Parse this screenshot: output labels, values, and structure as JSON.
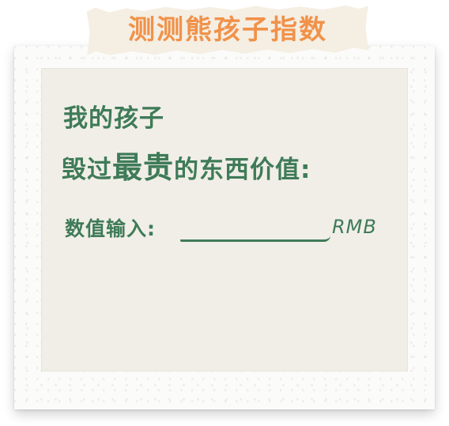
{
  "title": "测测熊孩子指数",
  "question": {
    "line1": "我的孩子",
    "line2_prefix": "毁过",
    "line2_emphasis": "最贵",
    "line2_suffix": "的东西价值:"
  },
  "input": {
    "label": "数值输入:",
    "value": "",
    "placeholder": "",
    "unit": "RMB"
  },
  "colors": {
    "title": "#f0924a",
    "text": "#3f7b58",
    "card": "#f1eee8",
    "frame": "#fbfbfa"
  }
}
